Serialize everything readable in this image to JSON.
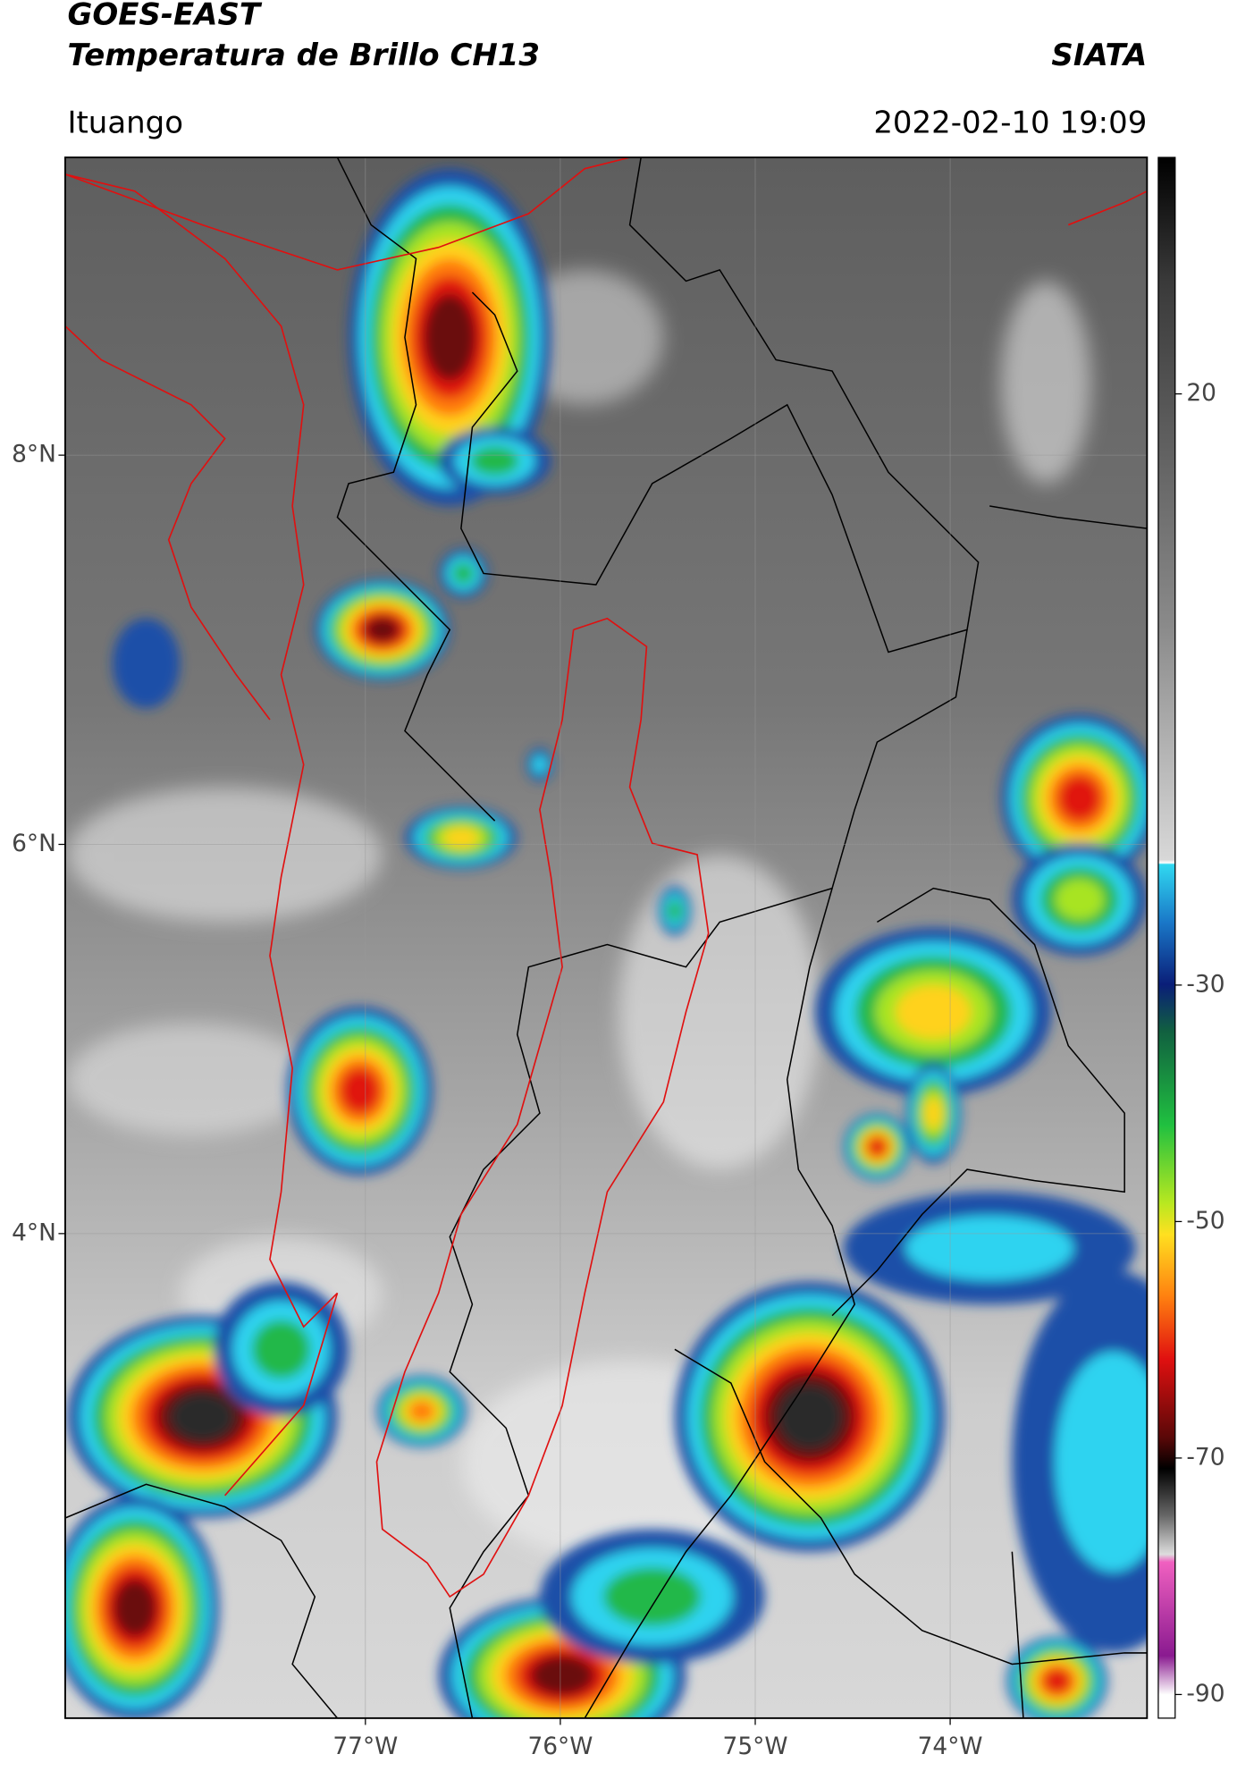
{
  "header": {
    "title": "GOES-EAST",
    "subtitle": "Temperatura de Brillo CH13",
    "place": "Ituango",
    "org": "SIATA",
    "datetime": "2022-02-10 19:09"
  },
  "map": {
    "xlim": [
      -78.54,
      -72.99
    ],
    "ylim": [
      1.51,
      9.53
    ],
    "xticks": [
      {
        "value": -77,
        "label": "77°W"
      },
      {
        "value": -76,
        "label": "76°W"
      },
      {
        "value": -75,
        "label": "75°W"
      },
      {
        "value": -74,
        "label": "74°W"
      }
    ],
    "yticks": [
      {
        "value": 8,
        "label": "8°N"
      },
      {
        "value": 6,
        "label": "6°N"
      },
      {
        "value": 4,
        "label": "4°N"
      }
    ]
  },
  "colorbar": {
    "clim": [
      -92,
      40
    ],
    "ticks": [
      20,
      -30,
      -50,
      -70,
      -90
    ]
  }
}
